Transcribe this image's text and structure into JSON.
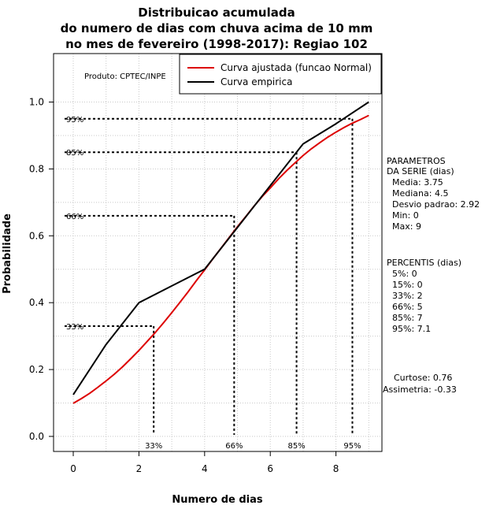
{
  "chart_data": {
    "type": "line",
    "title": [
      "Distribuicao acumulada",
      "do numero de dias com chuva acima de 10 mm",
      "no mes de fevereiro (1998-2017): Regiao 102"
    ],
    "xlabel": "Numero de dias",
    "ylabel": "Probabilidade",
    "xlim": [
      -0.6,
      9.4
    ],
    "ylim": [
      -0.045,
      1.145
    ],
    "xticks": [
      0,
      2,
      4,
      6,
      8
    ],
    "yticks": [
      0.0,
      0.2,
      0.4,
      0.6,
      0.8,
      1.0
    ],
    "xgrid": [
      0,
      1,
      2,
      3,
      4,
      5,
      6,
      7,
      8,
      9
    ],
    "ygrid": [
      0.0,
      0.1,
      0.2,
      0.3,
      0.4,
      0.5,
      0.6,
      0.7,
      0.8,
      0.9,
      1.0
    ],
    "product_label": "Produto: CPTEC/INPE",
    "legend": [
      {
        "label": "Curva ajustada (funcao Normal)",
        "color": "#dd0000"
      },
      {
        "label": "Curva empirica",
        "color": "#000000"
      }
    ],
    "series": [
      {
        "name": "Curva ajustada (funcao Normal)",
        "color": "#dd0000",
        "normal_mean": 3.75,
        "normal_sd": 2.92,
        "x": [
          0,
          0.25,
          0.5,
          0.75,
          1,
          1.25,
          1.5,
          1.75,
          2,
          2.25,
          2.5,
          2.75,
          3,
          3.25,
          3.5,
          3.75,
          4,
          4.25,
          4.5,
          4.75,
          5,
          5.25,
          5.5,
          5.75,
          6,
          6.25,
          6.5,
          6.75,
          7,
          7.25,
          7.5,
          7.75,
          8,
          8.25,
          8.5,
          8.75,
          9
        ],
        "values": [
          0.099,
          0.113,
          0.129,
          0.147,
          0.166,
          0.186,
          0.208,
          0.232,
          0.257,
          0.284,
          0.311,
          0.34,
          0.37,
          0.401,
          0.433,
          0.466,
          0.498,
          0.531,
          0.563,
          0.595,
          0.627,
          0.657,
          0.688,
          0.717,
          0.743,
          0.77,
          0.795,
          0.818,
          0.84,
          0.86,
          0.878,
          0.895,
          0.91,
          0.924,
          0.937,
          0.948,
          0.96
        ]
      },
      {
        "name": "Curva empirica",
        "color": "#000000",
        "x": [
          0,
          1,
          2,
          3,
          4,
          5,
          6,
          7,
          8,
          9
        ],
        "values": [
          0.125,
          0.275,
          0.4,
          0.45,
          0.5,
          0.625,
          0.75,
          0.875,
          0.935,
          1.0
        ]
      }
    ],
    "percentile_markers": [
      {
        "label": "33%",
        "x": 2.45,
        "y": 0.33
      },
      {
        "label": "66%",
        "x": 4.9,
        "y": 0.66
      },
      {
        "label": "85%",
        "x": 6.8,
        "y": 0.85
      },
      {
        "label": "95%",
        "x": 8.5,
        "y": 0.95
      }
    ],
    "params_title": [
      "PARAMETROS",
      "DA SERIE (dias)"
    ],
    "params": [
      "Media: 3.75",
      "Mediana: 4.5",
      "Desvio padrao: 2.92",
      "Min: 0",
      "Max: 9"
    ],
    "percentis_title": "PERCENTIS (dias)",
    "percentis": [
      "5%: 0",
      "15%: 0",
      "33%: 2",
      "66%: 5",
      "85%: 7",
      "95%: 7.1"
    ],
    "curtose": "Curtose: 0.76",
    "assimetria": "Assimetria: -0.33"
  }
}
